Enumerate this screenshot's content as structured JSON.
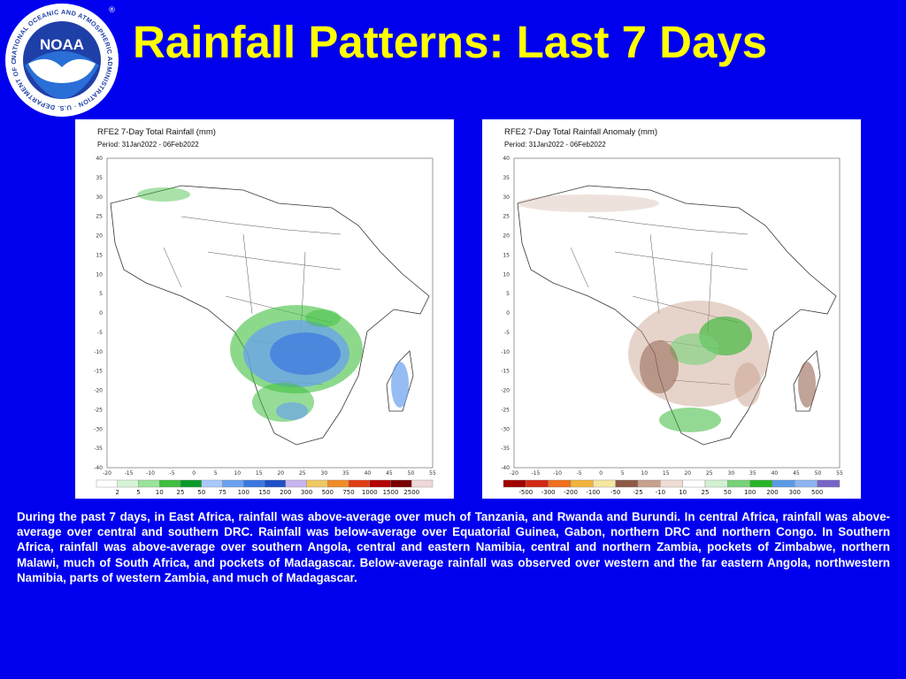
{
  "header": {
    "title": "Rainfall Patterns: Last 7 Days",
    "logo_text": "NOAA",
    "logo_ring_text": "NATIONAL OCEANIC AND ATMOSPHERIC ADMINISTRATION · U.S. DEPARTMENT OF COMMERCE",
    "logo_registered": "®"
  },
  "colors": {
    "background": "#0000ee",
    "title": "#ffff00",
    "caption": "#ffffff"
  },
  "maps": [
    {
      "title": "RFE2 7-Day Total Rainfall (mm)",
      "period": "Period: 31Jan2022 - 06Feb2022",
      "y_ticks": [
        "40",
        "35",
        "30",
        "25",
        "20",
        "15",
        "10",
        "5",
        "0",
        "-5",
        "-10",
        "-15",
        "-20",
        "-25",
        "-30",
        "-35",
        "-40"
      ],
      "x_ticks": [
        "-20",
        "-15",
        "-10",
        "-5",
        "0",
        "5",
        "10",
        "15",
        "20",
        "25",
        "30",
        "35",
        "40",
        "45",
        "50",
        "55"
      ],
      "colorbar_labels": [
        "2",
        "5",
        "10",
        "25",
        "50",
        "75",
        "100",
        "150",
        "200",
        "300",
        "500",
        "750",
        "1000",
        "1500",
        "2500"
      ],
      "colorbar_colors": [
        "#ffffff",
        "#d6f5d6",
        "#9be39b",
        "#3fbf3f",
        "#0a9a2a",
        "#a8c8ff",
        "#6aa0f0",
        "#3a78e0",
        "#1f50c8",
        "#c8b4f0",
        "#f0c864",
        "#f08c28",
        "#e03c14",
        "#b40000",
        "#780000",
        "#f0d8d8"
      ]
    },
    {
      "title": "RFE2 7-Day Total Rainfall Anomaly (mm)",
      "period": "Period: 31Jan2022 - 06Feb2022",
      "y_ticks": [
        "40",
        "35",
        "30",
        "25",
        "20",
        "15",
        "10",
        "5",
        "0",
        "-5",
        "-10",
        "-15",
        "-20",
        "-25",
        "-30",
        "-35",
        "-40"
      ],
      "x_ticks": [
        "-20",
        "-15",
        "-10",
        "-5",
        "0",
        "5",
        "10",
        "15",
        "20",
        "25",
        "30",
        "35",
        "40",
        "45",
        "50",
        "55"
      ],
      "colorbar_labels": [
        "-500",
        "-300",
        "-200",
        "-100",
        "-50",
        "-25",
        "-10",
        "10",
        "25",
        "50",
        "100",
        "200",
        "300",
        "500"
      ],
      "colorbar_colors": [
        "#a00000",
        "#d22814",
        "#f06e1e",
        "#f0b43c",
        "#f5e6a0",
        "#8c5a46",
        "#c8a08c",
        "#f0dcd2",
        "#ffffff",
        "#d2f0d2",
        "#78d278",
        "#28b428",
        "#5a9ae6",
        "#8cb4f0",
        "#7864c8"
      ]
    }
  ],
  "caption": "During the past 7 days, in East Africa, rainfall was above-average over much of Tanzania, and Rwanda and Burundi. In central Africa, rainfall was above-average over central and southern DRC. Rainfall was below-average over Equatorial Guinea, Gabon, northern DRC and northern Congo. In Southern Africa, rainfall was above-average over southern Angola, central and eastern Namibia, central and northern Zambia, pockets of Zimbabwe, northern Malawi, much of South Africa, and pockets of Madagascar. Below-average rainfall was observed over western and the far eastern Angola, northwestern Namibia, parts of western Zambia, and much of Madagascar."
}
